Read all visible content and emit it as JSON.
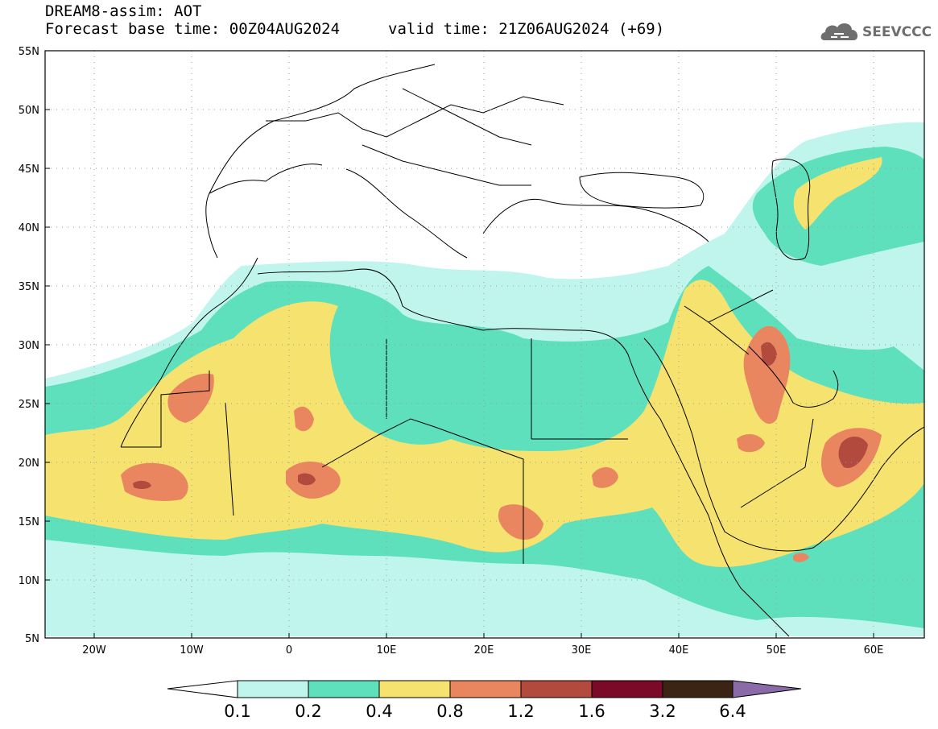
{
  "header": {
    "title": "DREAM8-assim: AOT",
    "base_time": "Forecast base time: 00Z04AUG2024",
    "valid_time": "valid time: 21Z06AUG2024 (+69)"
  },
  "logo": {
    "text": "SEEVCCC",
    "icon": "cloud-logo-icon"
  },
  "map": {
    "lon_range": [
      -25,
      65
    ],
    "lat_range": [
      5,
      55
    ],
    "lat_ticks": [
      "55N",
      "50N",
      "45N",
      "40N",
      "35N",
      "30N",
      "25N",
      "20N",
      "15N",
      "10N",
      "5N"
    ],
    "lon_ticks": [
      "20W",
      "10W",
      "0",
      "10E",
      "20E",
      "30E",
      "40E",
      "50E",
      "60E"
    ]
  },
  "colorbar": {
    "labels": [
      "0.1",
      "0.2",
      "0.4",
      "0.8",
      "1.2",
      "1.6",
      "3.2",
      "6.4"
    ],
    "colors": {
      "below": "#ffffff",
      "c1": "#bff5ec",
      "c2": "#5fe0bd",
      "c3": "#f5e26f",
      "c4": "#e9865f",
      "c5": "#b34a3e",
      "c6": "#7a0a28",
      "c7": "#3c2415",
      "above": "#8a6aa8"
    }
  }
}
